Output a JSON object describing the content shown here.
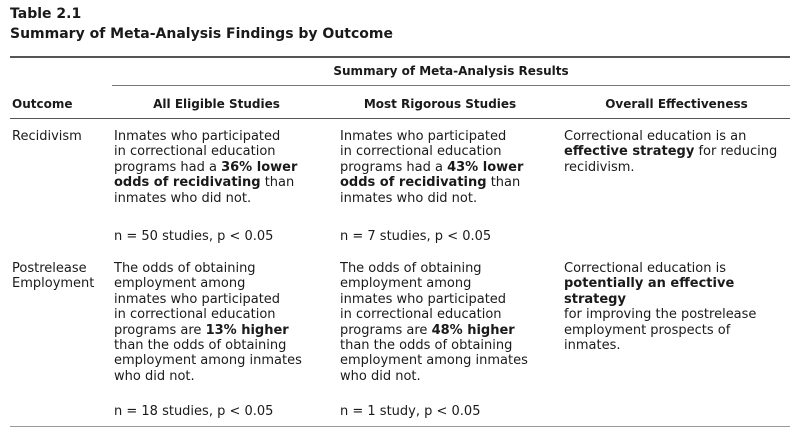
{
  "table": {
    "label": "Table 2.1",
    "title": "Summary of Meta-Analysis Findings by Outcome",
    "spanner": "Summary of Meta-Analysis Results",
    "columns": [
      "Outcome",
      "All Eligible Studies",
      "Most Rigorous Studies",
      "Overall Effectiveness"
    ],
    "rows": [
      {
        "outcome_lines": [
          "Recidivism"
        ],
        "all_eligible": {
          "lines": [
            [
              "Inmates who participated"
            ],
            [
              "in correctional education"
            ],
            [
              "programs had a ",
              "**36% lower"
            ],
            [
              "**odds of recidivating",
              " than"
            ],
            [
              "inmates who did not."
            ]
          ],
          "stats": "n = 50 studies, p < 0.05"
        },
        "most_rigorous": {
          "lines": [
            [
              "Inmates who participated"
            ],
            [
              "in correctional education"
            ],
            [
              "programs had a ",
              "**43% lower"
            ],
            [
              "**odds of recidivating",
              " than"
            ],
            [
              "inmates who did not."
            ]
          ],
          "stats": "n = 7 studies, p < 0.05"
        },
        "overall": {
          "lines": [
            [
              "Correctional education is an"
            ],
            [
              "**effective strategy",
              " for reducing"
            ],
            [
              "recidivism."
            ]
          ]
        }
      },
      {
        "outcome_lines": [
          "Postrelease",
          "Employment"
        ],
        "all_eligible": {
          "lines": [
            [
              "The odds of obtaining"
            ],
            [
              "employment among"
            ],
            [
              "inmates who participated"
            ],
            [
              "in correctional education"
            ],
            [
              "programs are ",
              "**13% higher"
            ],
            [
              "than the odds of obtaining"
            ],
            [
              "employment among inmates"
            ],
            [
              "who did not."
            ]
          ],
          "stats": "n = 18 studies, p < 0.05"
        },
        "most_rigorous": {
          "lines": [
            [
              "The odds of obtaining"
            ],
            [
              "employment among"
            ],
            [
              "inmates who participated"
            ],
            [
              "in correctional education"
            ],
            [
              "programs are ",
              "**48% higher"
            ],
            [
              "than the odds of obtaining"
            ],
            [
              "employment among inmates"
            ],
            [
              "who did not."
            ]
          ],
          "stats": "n = 1 study, p < 0.05"
        },
        "overall": {
          "lines": [
            [
              "Correctional education is"
            ],
            [
              "**potentially an effective strategy"
            ],
            [
              "for improving the postrelease"
            ],
            [
              "employment prospects of"
            ],
            [
              "inmates."
            ]
          ]
        }
      }
    ]
  }
}
